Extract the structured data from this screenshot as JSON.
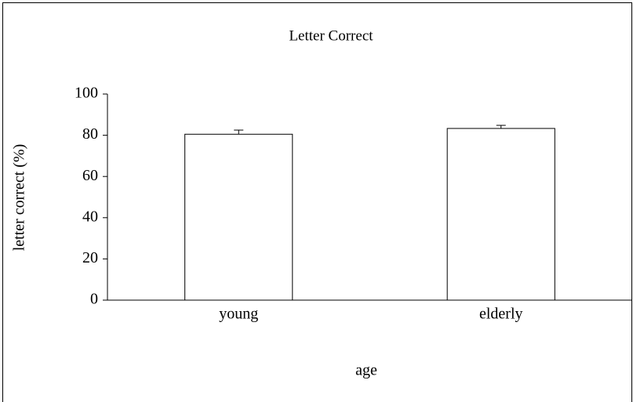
{
  "chart_data": {
    "type": "bar",
    "title": "Letter Correct",
    "x_label": "age",
    "y_label": "letter correct (%)",
    "categories": [
      "young",
      "elderly"
    ],
    "values": [
      80.5,
      83.3
    ],
    "errors": [
      2,
      1.5
    ],
    "color": "#ffffff",
    "edge_color": "#000000",
    "ylim": [
      0,
      100
    ],
    "yticks": [
      0,
      20,
      40,
      60,
      80,
      100
    ],
    "grid": false
  }
}
